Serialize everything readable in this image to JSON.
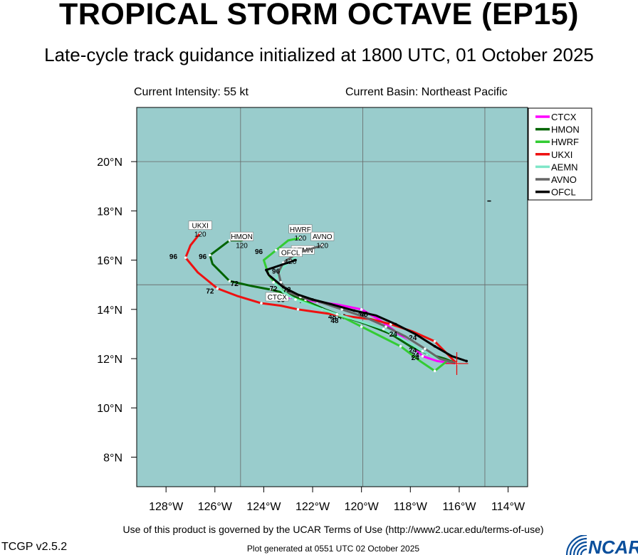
{
  "header": {
    "title": "TROPICAL STORM OCTAVE (EP15)",
    "subtitle": "Late-cycle track guidance initialized at 1800 UTC, 01 October 2025",
    "current_intensity": "Current Intensity: 55 kt",
    "current_basin": "Current Basin: Northeast Pacific"
  },
  "footer": {
    "terms": "Use of this product is governed by the UCAR Terms of Use (http://www2.ucar.edu/terms-of-use)",
    "version": "TCGP v2.5.2",
    "generated": "Plot generated at 0551 UTC   02 October 2025",
    "logo_text": "NCAR",
    "logo_color": "#0b4f9c"
  },
  "chart_data": {
    "type": "line",
    "map": {
      "ocean_color": "#99cccc",
      "land_color": "#ffffff",
      "grid": true
    },
    "xlim": [
      -129.2,
      -113.2
    ],
    "ylim": [
      6.8,
      22.2
    ],
    "x_ticks": [
      -128,
      -126,
      -124,
      -122,
      -120,
      -118,
      -116,
      -114
    ],
    "x_tick_labels": [
      "128°W",
      "126°W",
      "124°W",
      "122°W",
      "120°W",
      "118°W",
      "116°W",
      "114°W"
    ],
    "y_ticks": [
      8,
      10,
      12,
      14,
      16,
      18,
      20
    ],
    "y_tick_labels": [
      "8°N",
      "10°N",
      "12°N",
      "14°N",
      "16°N",
      "18°N",
      "20°N"
    ],
    "gridlines_lon": [
      -124.95,
      -119.95,
      -114.95
    ],
    "gridlines_lat": [
      15.0,
      20.0
    ],
    "storm_position": [
      -116.1,
      11.8
    ],
    "legend_position": "top-right",
    "series": [
      {
        "name": "CTCX",
        "color": "#ff00ff",
        "points": [
          [
            -116.1,
            11.8
          ],
          [
            -116.9,
            11.9
          ],
          [
            -117.5,
            12.1
          ],
          [
            -118.0,
            12.6
          ],
          [
            -118.6,
            13.1
          ],
          [
            -119.3,
            13.6
          ],
          [
            -120.0,
            14.0
          ],
          [
            -121.0,
            14.2
          ],
          [
            -121.8,
            14.3
          ],
          [
            -122.6,
            14.45
          ],
          [
            -123.3,
            14.5
          ],
          [
            -123.7,
            14.4
          ]
        ],
        "tau_labels": [
          {
            "lon": -117.8,
            "lat": 12.05,
            "text": "24"
          },
          {
            "lon": -120.8,
            "lat": 13.6,
            "text": "48"
          },
          {
            "lon": -122.4,
            "lat": 14.25,
            "text": "72"
          },
          {
            "lon": -123.3,
            "lat": 14.3,
            "text": "96"
          }
        ],
        "end_label": {
          "lon": -123.45,
          "lat": 14.4,
          "text": "CTCX"
        }
      },
      {
        "name": "HMON",
        "color": "#006400",
        "points": [
          [
            -116.1,
            11.8
          ],
          [
            -116.6,
            12.0
          ],
          [
            -117.3,
            12.2
          ],
          [
            -118.0,
            12.5
          ],
          [
            -118.8,
            13.0
          ],
          [
            -119.8,
            13.4
          ],
          [
            -120.7,
            13.7
          ],
          [
            -121.5,
            14.0
          ],
          [
            -122.3,
            14.35
          ],
          [
            -122.9,
            14.6
          ],
          [
            -123.7,
            14.8
          ],
          [
            -124.5,
            14.95
          ],
          [
            -125.4,
            15.15
          ],
          [
            -126.1,
            15.85
          ],
          [
            -126.2,
            16.2
          ],
          [
            -125.8,
            16.5
          ],
          [
            -125.4,
            16.8
          ],
          [
            -124.9,
            16.8
          ]
        ],
        "tau_labels": [
          {
            "lon": -117.9,
            "lat": 12.25,
            "text": "24"
          },
          {
            "lon": -121.2,
            "lat": 13.6,
            "text": "48"
          },
          {
            "lon": -125.2,
            "lat": 14.95,
            "text": "72"
          },
          {
            "lon": -126.5,
            "lat": 16.05,
            "text": "96"
          }
        ],
        "end_label": {
          "lon": -124.9,
          "lat": 16.85,
          "text": "HMON"
        },
        "end_number": {
          "lon": -124.9,
          "lat": 16.5,
          "text": "120"
        }
      },
      {
        "name": "HWRF",
        "color": "#33cc33",
        "points": [
          [
            -116.1,
            11.8
          ],
          [
            -116.5,
            11.9
          ],
          [
            -117.0,
            11.5
          ],
          [
            -117.6,
            11.9
          ],
          [
            -118.4,
            12.5
          ],
          [
            -119.2,
            12.9
          ],
          [
            -120.0,
            13.3
          ],
          [
            -120.8,
            13.7
          ],
          [
            -121.6,
            14.0
          ],
          [
            -122.3,
            14.3
          ],
          [
            -122.9,
            14.5
          ],
          [
            -123.4,
            14.9
          ],
          [
            -123.8,
            15.4
          ],
          [
            -124.0,
            16.0
          ],
          [
            -123.5,
            16.4
          ],
          [
            -123.0,
            16.8
          ],
          [
            -122.5,
            16.9
          ]
        ],
        "tau_labels": [
          {
            "lon": -117.8,
            "lat": 11.95,
            "text": "24"
          },
          {
            "lon": -121.1,
            "lat": 13.45,
            "text": "48"
          },
          {
            "lon": -123.6,
            "lat": 14.75,
            "text": "72"
          },
          {
            "lon": -124.2,
            "lat": 16.25,
            "text": "96"
          }
        ],
        "end_label": {
          "lon": -122.5,
          "lat": 17.15,
          "text": "HWRF"
        },
        "end_number": {
          "lon": -122.5,
          "lat": 16.8,
          "text": "120"
        }
      },
      {
        "name": "UKXI",
        "color": "#ee1111",
        "points": [
          [
            -116.1,
            11.8
          ],
          [
            -116.5,
            12.2
          ],
          [
            -117.0,
            12.7
          ],
          [
            -117.9,
            13.1
          ],
          [
            -118.8,
            13.4
          ],
          [
            -119.6,
            13.6
          ],
          [
            -120.8,
            13.75
          ],
          [
            -121.9,
            13.9
          ],
          [
            -122.6,
            14.0
          ],
          [
            -123.3,
            14.15
          ],
          [
            -124.1,
            14.25
          ],
          [
            -125.1,
            14.55
          ],
          [
            -125.9,
            14.85
          ],
          [
            -126.7,
            15.5
          ],
          [
            -127.2,
            16.1
          ],
          [
            -127.0,
            16.6
          ],
          [
            -126.6,
            17.1
          ]
        ],
        "tau_labels": [
          {
            "lon": -117.9,
            "lat": 12.75,
            "text": "24"
          },
          {
            "lon": -120.0,
            "lat": 13.7,
            "text": "48"
          },
          {
            "lon": -126.2,
            "lat": 14.65,
            "text": "72"
          },
          {
            "lon": -127.7,
            "lat": 16.05,
            "text": "96"
          }
        ],
        "end_label": {
          "lon": -126.6,
          "lat": 17.3,
          "text": "UKXI"
        },
        "end_number": {
          "lon": -126.6,
          "lat": 16.95,
          "text": "120"
        }
      },
      {
        "name": "AEMN",
        "color": "#7fe6c8",
        "points": [
          [
            -116.1,
            11.8
          ],
          [
            -116.8,
            12.0
          ],
          [
            -117.5,
            12.3
          ],
          [
            -118.3,
            12.8
          ],
          [
            -119.1,
            13.2
          ],
          [
            -120.0,
            13.5
          ],
          [
            -121.0,
            13.8
          ],
          [
            -121.9,
            14.1
          ],
          [
            -122.7,
            14.4
          ],
          [
            -123.2,
            14.7
          ],
          [
            -123.6,
            15.1
          ],
          [
            -123.3,
            15.6
          ],
          [
            -122.9,
            16.0
          ],
          [
            -122.4,
            16.3
          ]
        ],
        "tau_labels": [],
        "end_label": {
          "lon": -122.4,
          "lat": 16.3,
          "text": "AEMN"
        }
      },
      {
        "name": "AVNO",
        "color": "#666666",
        "points": [
          [
            -116.1,
            11.8
          ],
          [
            -116.8,
            12.0
          ],
          [
            -117.4,
            12.4
          ],
          [
            -118.2,
            12.9
          ],
          [
            -119.0,
            13.3
          ],
          [
            -119.9,
            13.7
          ],
          [
            -120.8,
            14.0
          ],
          [
            -121.7,
            14.3
          ],
          [
            -122.5,
            14.5
          ],
          [
            -123.0,
            14.7
          ],
          [
            -123.3,
            15.1
          ],
          [
            -123.4,
            15.5
          ],
          [
            -123.2,
            15.9
          ],
          [
            -122.6,
            16.3
          ],
          [
            -121.6,
            16.6
          ]
        ],
        "tau_labels": [],
        "end_label": {
          "lon": -121.6,
          "lat": 16.85,
          "text": "AVNO"
        },
        "end_number": {
          "lon": -121.6,
          "lat": 16.5,
          "text": "120"
        }
      },
      {
        "name": "OFCL",
        "color": "#000000",
        "points": [
          [
            -115.7,
            11.9
          ],
          [
            -116.3,
            12.1
          ],
          [
            -117.0,
            12.5
          ],
          [
            -117.8,
            13.0
          ],
          [
            -118.6,
            13.4
          ],
          [
            -119.4,
            13.75
          ],
          [
            -120.3,
            13.95
          ],
          [
            -121.2,
            14.2
          ],
          [
            -122.0,
            14.4
          ],
          [
            -122.6,
            14.6
          ],
          [
            -123.2,
            14.9
          ],
          [
            -123.8,
            15.4
          ],
          [
            -123.9,
            15.6
          ],
          [
            -123.3,
            15.8
          ],
          [
            -122.7,
            16.0
          ]
        ],
        "tau_labels": [
          {
            "lon": -118.7,
            "lat": 12.9,
            "text": "24"
          },
          {
            "lon": -119.9,
            "lat": 13.7,
            "text": "48"
          },
          {
            "lon": -123.05,
            "lat": 14.7,
            "text": "72"
          },
          {
            "lon": -123.5,
            "lat": 15.45,
            "text": "96"
          }
        ],
        "end_label": {
          "lon": -122.9,
          "lat": 16.2,
          "text": "OFCL"
        },
        "end_number": {
          "lon": -122.9,
          "lat": 15.85,
          "text": "120"
        }
      }
    ]
  }
}
